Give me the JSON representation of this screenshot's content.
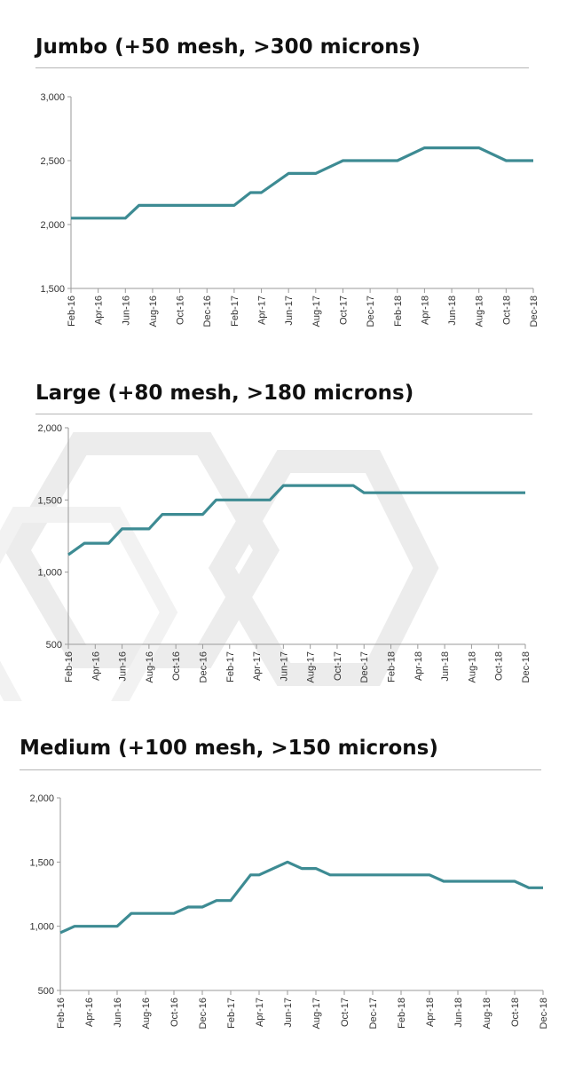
{
  "chart_data": [
    {
      "type": "line",
      "title": "Jumbo (+50 mesh, >300 microns)",
      "categories": [
        "Feb-16",
        "Apr-16",
        "Jun-16",
        "Aug-16",
        "Oct-16",
        "Dec-16",
        "Feb-17",
        "Apr-17",
        "Jun-17",
        "Aug-17",
        "Oct-17",
        "Dec-17",
        "Feb-18",
        "Apr-18",
        "Jun-18",
        "Aug-18",
        "Oct-18",
        "Dec-18"
      ],
      "ylim": [
        1500,
        3000
      ],
      "yticks": [
        1500,
        2000,
        2500,
        3000
      ],
      "ytick_labels": [
        "1,500",
        "2,000",
        "2,500",
        "3,000"
      ],
      "line_color": "#3d8b93",
      "series": [
        {
          "x": [
            0,
            1,
            2,
            2.5,
            3,
            4,
            5,
            5.5,
            6,
            6.6,
            7,
            8,
            9,
            10,
            11,
            11.6,
            12,
            13,
            14,
            14.6,
            15,
            16,
            17
          ],
          "values": [
            2050,
            2050,
            2050,
            2150,
            2150,
            2150,
            2150,
            2150,
            2150,
            2250,
            2250,
            2400,
            2400,
            2500,
            2500,
            2500,
            2500,
            2600,
            2600,
            2600,
            2600,
            2500,
            2500
          ]
        }
      ]
    },
    {
      "type": "line",
      "title": "Large (+80 mesh, >180 microns)",
      "categories": [
        "Feb-16",
        "Apr-16",
        "Jun-16",
        "Aug-16",
        "Oct-16",
        "Dec-16",
        "Feb-17",
        "Apr-17",
        "Jun-17",
        "Aug-17",
        "Oct-17",
        "Dec-17",
        "Feb-18",
        "Apr-18",
        "Jun-18",
        "Aug-18",
        "Oct-18",
        "Dec-18"
      ],
      "ylim": [
        500,
        2000
      ],
      "yticks": [
        500,
        1000,
        1500,
        2000
      ],
      "ytick_labels": [
        "500",
        "1,000",
        "1,500",
        "2,000"
      ],
      "line_color": "#3d8b93",
      "series": [
        {
          "x": [
            0,
            0.6,
            1,
            1.5,
            2,
            2.6,
            3,
            3.5,
            4,
            4.6,
            5,
            5.5,
            6,
            6.6,
            7,
            7.5,
            8,
            8.6,
            9,
            9.5,
            10,
            10.6,
            11,
            11.5,
            12,
            13,
            14,
            15,
            16,
            17
          ],
          "values": [
            1120,
            1200,
            1200,
            1200,
            1300,
            1300,
            1300,
            1400,
            1400,
            1400,
            1400,
            1500,
            1500,
            1500,
            1500,
            1500,
            1600,
            1600,
            1600,
            1600,
            1600,
            1600,
            1550,
            1550,
            1550,
            1550,
            1550,
            1550,
            1550,
            1550
          ]
        }
      ]
    },
    {
      "type": "line",
      "title": "Medium (+100 mesh, >150 microns)",
      "categories": [
        "Feb-16",
        "Apr-16",
        "Jun-16",
        "Aug-16",
        "Oct-16",
        "Dec-16",
        "Feb-17",
        "Apr-17",
        "Jun-17",
        "Aug-17",
        "Oct-17",
        "Dec-17",
        "Feb-18",
        "Apr-18",
        "Jun-18",
        "Aug-18",
        "Oct-18",
        "Dec-18"
      ],
      "ylim": [
        500,
        2000
      ],
      "yticks": [
        500,
        1000,
        1500,
        2000
      ],
      "ytick_labels": [
        "500",
        "1,000",
        "1,500",
        "2,000"
      ],
      "line_color": "#3d8b93",
      "series": [
        {
          "x": [
            0,
            0.5,
            1,
            2,
            2.5,
            3,
            4,
            4.5,
            5,
            5.5,
            6,
            6.7,
            7,
            8,
            8.5,
            9,
            9.5,
            10,
            11,
            12,
            13,
            13.5,
            14,
            15,
            16,
            16.5,
            17
          ],
          "values": [
            950,
            1000,
            1000,
            1000,
            1100,
            1100,
            1100,
            1150,
            1150,
            1200,
            1200,
            1400,
            1400,
            1500,
            1450,
            1450,
            1400,
            1400,
            1400,
            1400,
            1400,
            1350,
            1350,
            1350,
            1350,
            1300,
            1300
          ]
        }
      ]
    }
  ]
}
